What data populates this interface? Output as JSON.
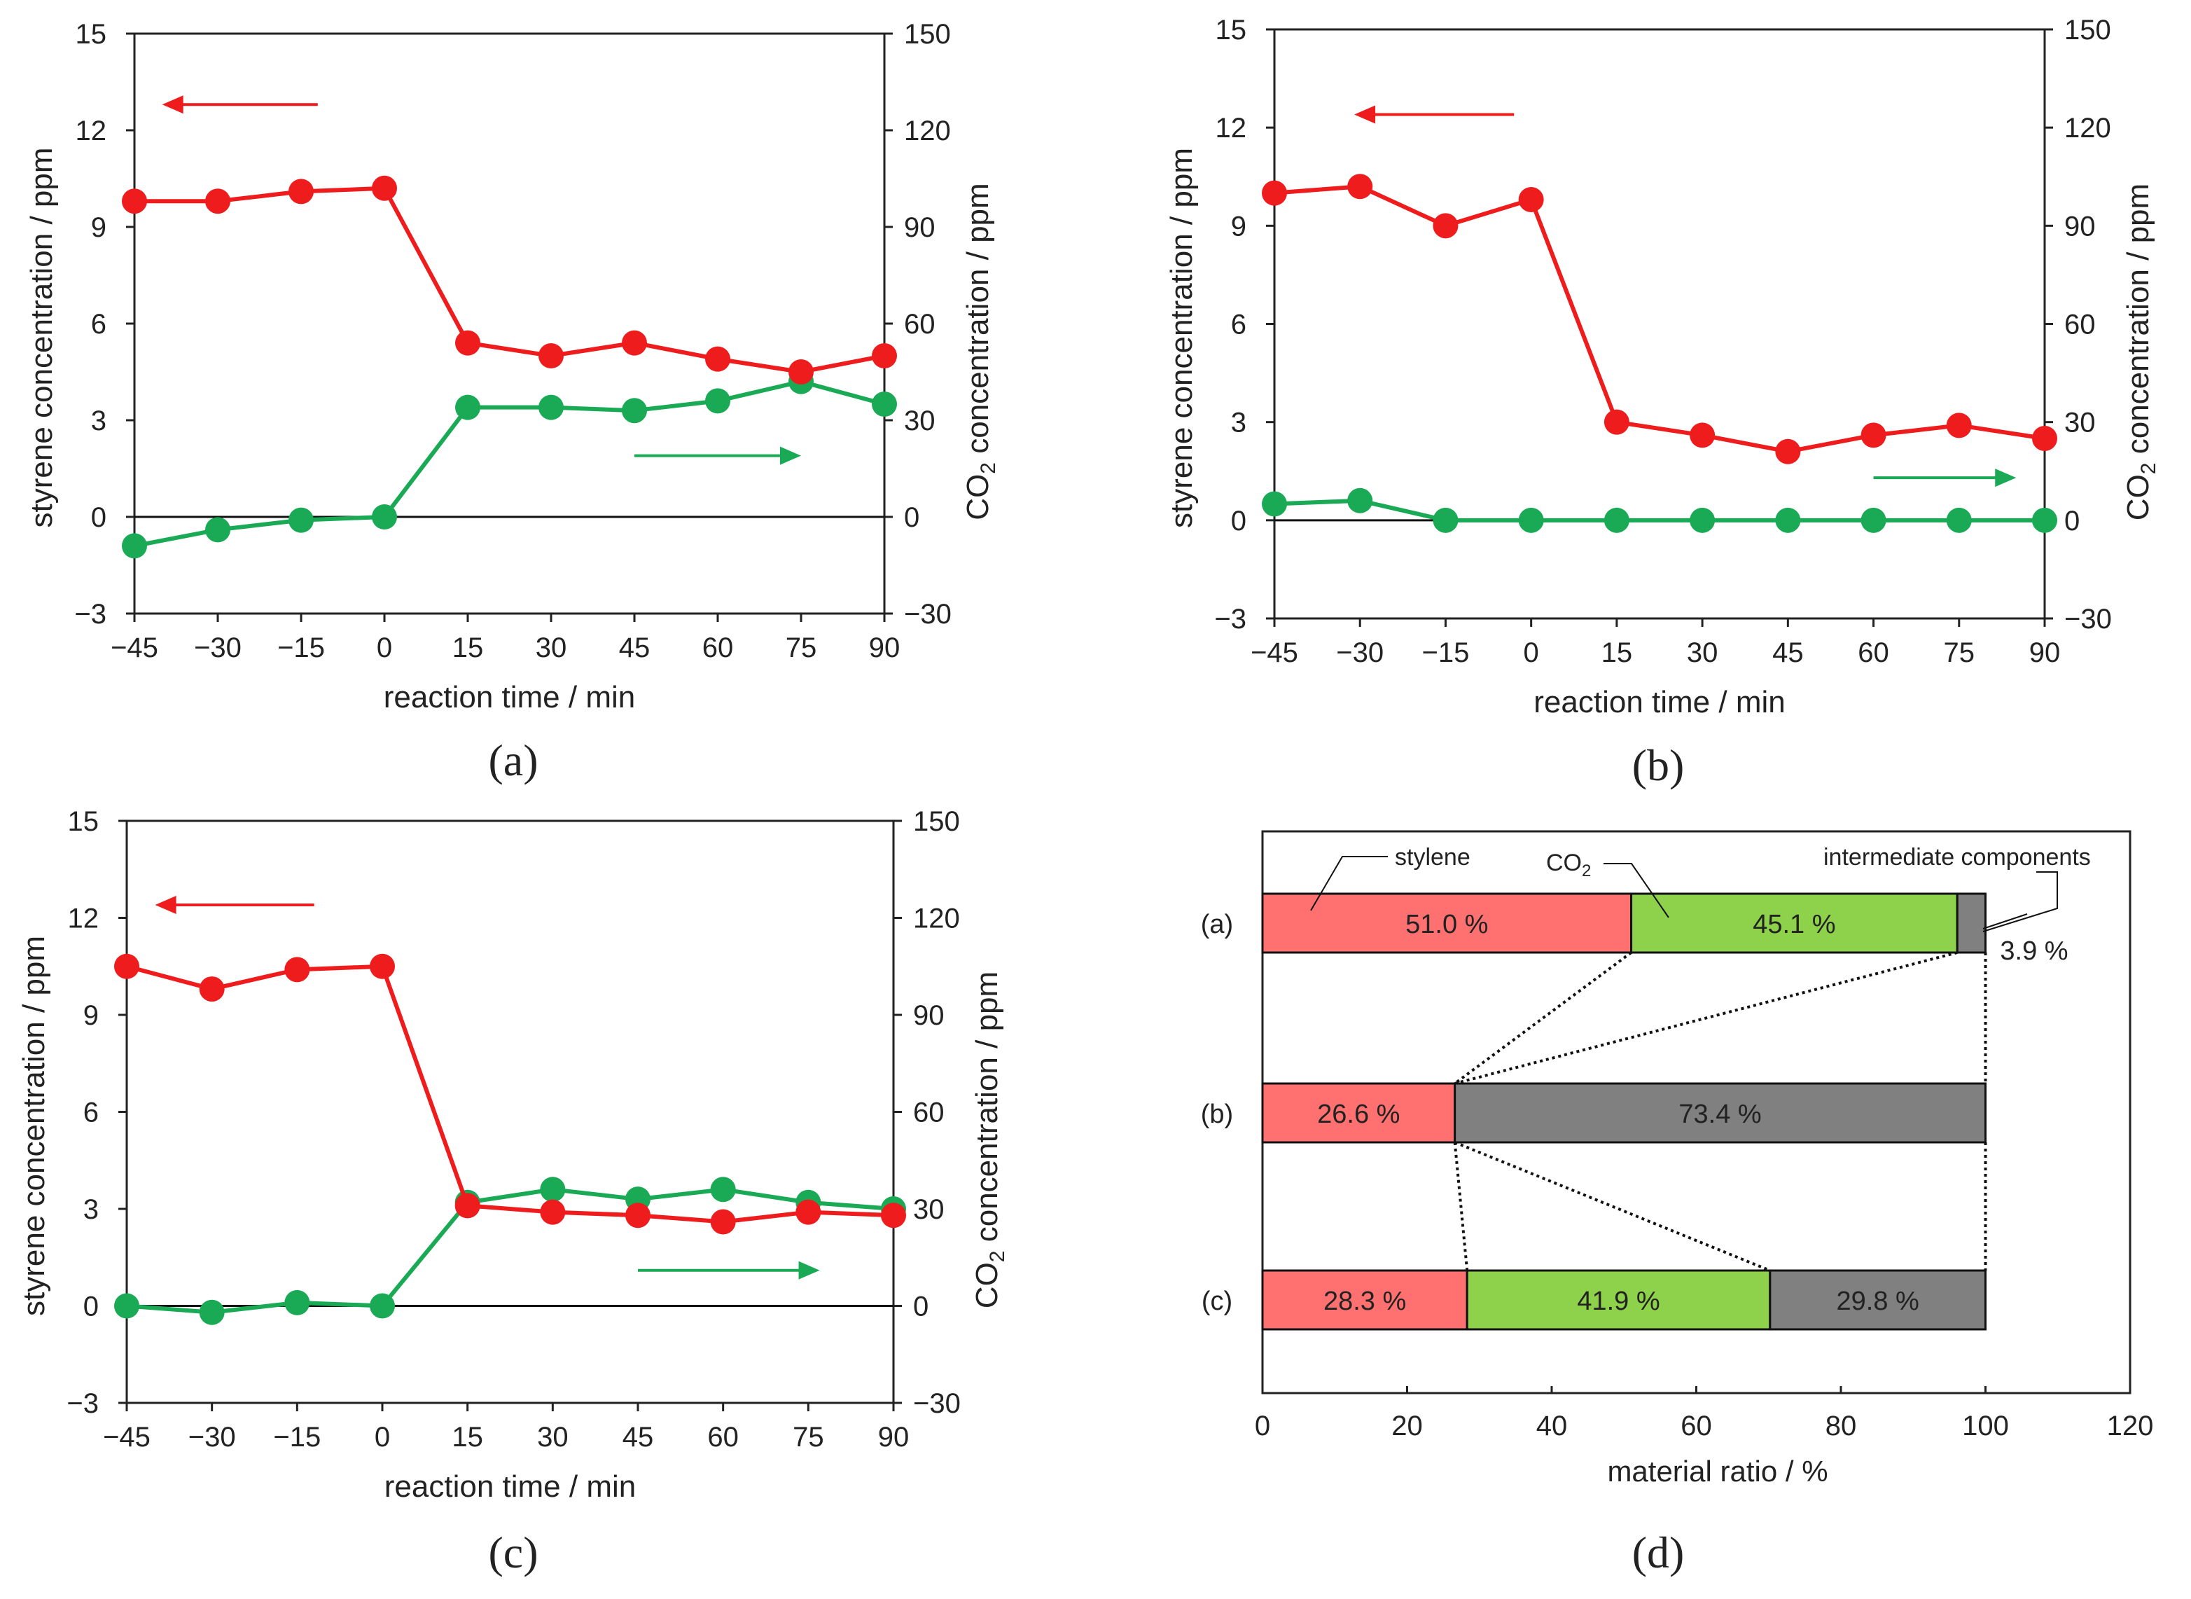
{
  "colors": {
    "styrene": "#ee1c1c",
    "co2": "#1aaa55",
    "bar_styrene": "#ff7070",
    "bar_co2": "#8ed14a",
    "bar_intermediate": "#808080"
  },
  "chart_data": [
    {
      "id": "a",
      "type": "line",
      "caption": "(a)",
      "xlabel": "reaction time / min",
      "ylabel_left": "styrene concentration / ppm",
      "ylabel_right_prefix": "CO",
      "ylabel_right_sub": "2",
      "ylabel_right_suffix": " concentration / ppm",
      "x": [
        -45,
        -30,
        -15,
        0,
        15,
        30,
        45,
        60,
        75,
        90
      ],
      "x_tick_labels": [
        "−45",
        "−30",
        "−15",
        "0",
        "15",
        "30",
        "45",
        "60",
        "75",
        "90"
      ],
      "xlim": [
        -45,
        90
      ],
      "ylim_left": [
        -3,
        15
      ],
      "y_ticks_left": [
        -3,
        0,
        3,
        6,
        9,
        12,
        15
      ],
      "y_tick_labels_left": [
        "−3",
        "0",
        "3",
        "6",
        "9",
        "12",
        "15"
      ],
      "ylim_right": [
        -30,
        150
      ],
      "y_ticks_right": [
        -30,
        0,
        30,
        60,
        90,
        120,
        150
      ],
      "y_tick_labels_right": [
        "−30",
        "0",
        "30",
        "60",
        "90",
        "120",
        "150"
      ],
      "series": [
        {
          "name": "styrene",
          "axis": "left",
          "values": [
            9.8,
            9.8,
            10.1,
            10.2,
            5.4,
            5.0,
            5.4,
            4.9,
            4.5,
            5.0
          ]
        },
        {
          "name": "CO2",
          "axis": "right",
          "values": [
            -9,
            -4,
            -1,
            0,
            34,
            34,
            33,
            36,
            42,
            35
          ]
        }
      ],
      "arrows": [
        {
          "series": "styrene",
          "direction": "left",
          "x_from": -12,
          "x_to": -40,
          "y": 12.8
        },
        {
          "series": "CO2",
          "direction": "right",
          "x_from": 45,
          "x_to": 75,
          "y": 1.9
        }
      ]
    },
    {
      "id": "b",
      "type": "line",
      "caption": "(b)",
      "xlabel": "reaction time / min",
      "ylabel_left": "styrene concentration / ppm",
      "ylabel_right_prefix": "CO",
      "ylabel_right_sub": "2",
      "ylabel_right_suffix": " concentration / ppm",
      "x": [
        -45,
        -30,
        -15,
        0,
        15,
        30,
        45,
        60,
        75,
        90
      ],
      "x_tick_labels": [
        "−45",
        "−30",
        "−15",
        "0",
        "15",
        "30",
        "45",
        "60",
        "75",
        "90"
      ],
      "xlim": [
        -45,
        90
      ],
      "ylim_left": [
        -3,
        15
      ],
      "y_ticks_left": [
        -3,
        0,
        3,
        6,
        9,
        12,
        15
      ],
      "y_tick_labels_left": [
        "−3",
        "0",
        "3",
        "6",
        "9",
        "12",
        "15"
      ],
      "ylim_right": [
        -30,
        150
      ],
      "y_ticks_right": [
        -30,
        0,
        30,
        60,
        90,
        120,
        150
      ],
      "y_tick_labels_right": [
        "−30",
        "0",
        "30",
        "60",
        "90",
        "120",
        "150"
      ],
      "series": [
        {
          "name": "styrene",
          "axis": "left",
          "values": [
            10.0,
            10.2,
            9.0,
            9.8,
            3.0,
            2.6,
            2.1,
            2.6,
            2.9,
            2.5
          ]
        },
        {
          "name": "CO2",
          "axis": "right",
          "values": [
            5,
            6,
            0,
            0,
            0,
            0,
            0,
            0,
            0,
            0
          ]
        }
      ],
      "arrows": [
        {
          "series": "styrene",
          "direction": "left",
          "x_from": -3,
          "x_to": -31,
          "y": 12.4
        },
        {
          "series": "CO2",
          "direction": "right",
          "x_from": 60,
          "x_to": 85,
          "y": 1.3
        }
      ]
    },
    {
      "id": "c",
      "type": "line",
      "caption": "(c)",
      "xlabel": "reaction time / min",
      "ylabel_left": "styrene concentration / ppm",
      "ylabel_right_prefix": "CO",
      "ylabel_right_sub": "2",
      "ylabel_right_suffix": " concentration / ppm",
      "x": [
        -45,
        -30,
        -15,
        0,
        15,
        30,
        45,
        60,
        75,
        90
      ],
      "x_tick_labels": [
        "−45",
        "−30",
        "−15",
        "0",
        "15",
        "30",
        "45",
        "60",
        "75",
        "90"
      ],
      "xlim": [
        -45,
        90
      ],
      "ylim_left": [
        -3,
        15
      ],
      "y_ticks_left": [
        -3,
        0,
        3,
        6,
        9,
        12,
        15
      ],
      "y_tick_labels_left": [
        "−3",
        "0",
        "3",
        "6",
        "9",
        "12",
        "15"
      ],
      "ylim_right": [
        -30,
        150
      ],
      "y_ticks_right": [
        -30,
        0,
        30,
        60,
        90,
        120,
        150
      ],
      "y_tick_labels_right": [
        "−30",
        "0",
        "30",
        "60",
        "90",
        "120",
        "150"
      ],
      "series": [
        {
          "name": "styrene",
          "axis": "left",
          "values": [
            10.5,
            9.8,
            10.4,
            10.5,
            3.1,
            2.9,
            2.8,
            2.6,
            2.9,
            2.8
          ]
        },
        {
          "name": "CO2",
          "axis": "right",
          "values": [
            0,
            -2,
            1,
            0,
            32,
            36,
            33,
            36,
            32,
            30
          ]
        }
      ],
      "arrows": [
        {
          "series": "styrene",
          "direction": "left",
          "x_from": -12,
          "x_to": -40,
          "y": 12.4
        },
        {
          "series": "CO2",
          "direction": "right",
          "x_from": 45,
          "x_to": 77,
          "y": 1.1
        }
      ]
    },
    {
      "id": "d",
      "type": "bar",
      "orientation": "horizontal",
      "stacked": true,
      "caption": "(d)",
      "xlabel": "material ratio / %",
      "xlim": [
        0,
        120
      ],
      "x_ticks": [
        0,
        20,
        40,
        60,
        80,
        100,
        120
      ],
      "x_tick_labels": [
        "0",
        "20",
        "40",
        "60",
        "80",
        "100",
        "120"
      ],
      "categories": [
        "(a)",
        "(b)",
        "(c)"
      ],
      "series": [
        {
          "name": "styrene",
          "values": [
            51.0,
            26.6,
            28.3
          ],
          "labels": [
            "51.0 %",
            "26.6 %",
            "28.3 %"
          ]
        },
        {
          "name": "CO2",
          "values": [
            45.1,
            0,
            41.9
          ],
          "labels": [
            "45.1 %",
            "",
            "41.9 %"
          ]
        },
        {
          "name": "intermediate components",
          "values": [
            3.9,
            73.4,
            29.8
          ],
          "labels": [
            "",
            "73.4 %",
            "29.8 %"
          ]
        }
      ],
      "outside_label": "3.9 %",
      "annotations": {
        "styrene": "stylene",
        "co2_prefix": "CO",
        "co2_sub": "2",
        "intermediate": "intermediate components"
      }
    }
  ]
}
